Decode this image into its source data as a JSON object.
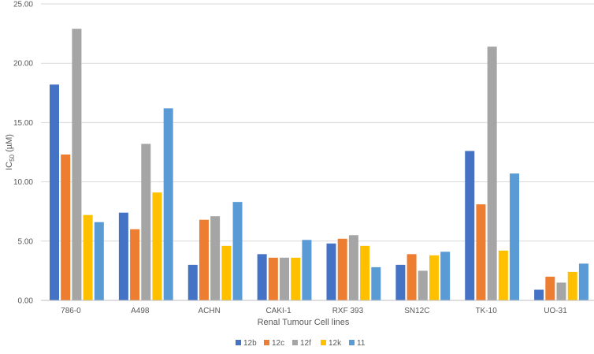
{
  "chart_data": {
    "type": "bar",
    "title": "",
    "xlabel": "Renal Tumour Cell lines",
    "ylabel": "IC50 (µM)",
    "ylabel_main": "IC",
    "ylabel_sub": "50",
    "ylabel_unit": " (µM)",
    "ylim": [
      0,
      25
    ],
    "yticks": [
      0,
      5,
      10,
      15,
      20,
      25
    ],
    "ytick_labels": [
      "0.00",
      "5.00",
      "10.00",
      "15.00",
      "20.00",
      "25.00"
    ],
    "grid": true,
    "legend_position": "bottom",
    "categories": [
      "786-0",
      "A498",
      "ACHN",
      "CAKI-1",
      "RXF 393",
      "SN12C",
      "TK-10",
      "UO-31"
    ],
    "series": [
      {
        "name": "12b",
        "color": "#4472C4",
        "values": [
          18.2,
          7.4,
          3.0,
          3.9,
          4.8,
          3.0,
          12.6,
          0.9
        ]
      },
      {
        "name": "12c",
        "color": "#ED7D31",
        "values": [
          12.3,
          6.0,
          6.8,
          3.6,
          5.2,
          3.9,
          8.1,
          2.0
        ]
      },
      {
        "name": "12f",
        "color": "#A5A5A5",
        "values": [
          22.9,
          13.2,
          7.1,
          3.6,
          5.5,
          2.5,
          21.4,
          1.5
        ]
      },
      {
        "name": "12k",
        "color": "#FFC000",
        "values": [
          7.2,
          9.1,
          4.6,
          3.6,
          4.6,
          3.8,
          4.2,
          2.4
        ]
      },
      {
        "name": "11",
        "color": "#5B9BD5",
        "values": [
          6.6,
          16.2,
          8.3,
          5.1,
          2.8,
          4.1,
          10.7,
          3.1
        ]
      }
    ]
  }
}
